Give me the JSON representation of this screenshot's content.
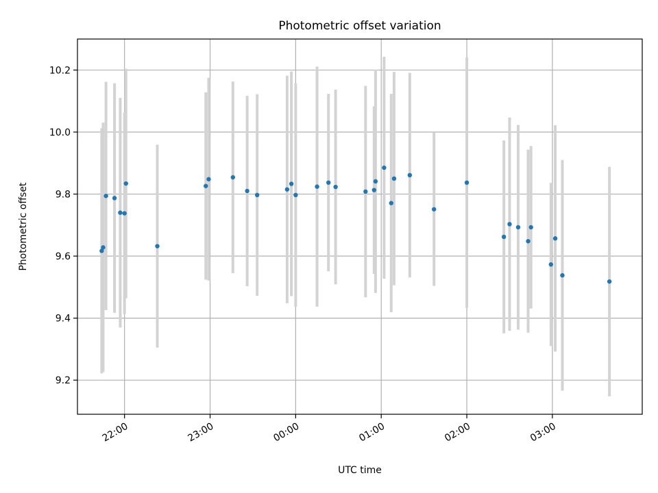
{
  "chart_data": {
    "type": "scatter",
    "title": "Photometric offset variation",
    "xlabel": "UTC time",
    "ylabel": "Photometric offset",
    "x_axis_type": "time",
    "xlim": [
      "21:27",
      "04:03"
    ],
    "ylim": [
      9.09,
      10.3
    ],
    "grid": true,
    "x_ticks": [
      "22:00",
      "23:00",
      "00:00",
      "01:00",
      "02:00",
      "03:00"
    ],
    "y_ticks": [
      "9.2",
      "9.4",
      "9.6",
      "9.8",
      "10.0",
      "10.2"
    ],
    "y_tick_values": [
      9.2,
      9.4,
      9.6,
      9.8,
      10.0,
      10.2
    ],
    "point_color": "#1f77b4",
    "errorbar_color": "#d3d3d3",
    "points": [
      {
        "t": "21:44",
        "y": 9.617,
        "err": 0.395
      },
      {
        "t": "21:45",
        "y": 9.628,
        "err": 0.402
      },
      {
        "t": "21:47",
        "y": 9.794,
        "err": 0.368
      },
      {
        "t": "21:53",
        "y": 9.787,
        "err": 0.37
      },
      {
        "t": "21:57",
        "y": 9.74,
        "err": 0.37
      },
      {
        "t": "22:00",
        "y": 9.738,
        "err": 0.325
      },
      {
        "t": "22:01",
        "y": 9.834,
        "err": 0.37
      },
      {
        "t": "22:23",
        "y": 9.632,
        "err": 0.327
      },
      {
        "t": "22:57",
        "y": 9.826,
        "err": 0.302
      },
      {
        "t": "22:59",
        "y": 9.848,
        "err": 0.327
      },
      {
        "t": "23:16",
        "y": 9.854,
        "err": 0.309
      },
      {
        "t": "23:26",
        "y": 9.81,
        "err": 0.307
      },
      {
        "t": "23:33",
        "y": 9.797,
        "err": 0.325
      },
      {
        "t": "23:54",
        "y": 9.815,
        "err": 0.367
      },
      {
        "t": "23:57",
        "y": 9.833,
        "err": 0.362
      },
      {
        "t": "00:00",
        "y": 9.797,
        "err": 0.36
      },
      {
        "t": "00:15",
        "y": 9.824,
        "err": 0.387
      },
      {
        "t": "00:23",
        "y": 9.837,
        "err": 0.286
      },
      {
        "t": "00:28",
        "y": 9.823,
        "err": 0.314
      },
      {
        "t": "00:49",
        "y": 9.808,
        "err": 0.341
      },
      {
        "t": "00:55",
        "y": 9.813,
        "err": 0.27
      },
      {
        "t": "00:56",
        "y": 9.841,
        "err": 0.36
      },
      {
        "t": "01:02",
        "y": 9.885,
        "err": 0.358
      },
      {
        "t": "01:07",
        "y": 9.771,
        "err": 0.352
      },
      {
        "t": "01:09",
        "y": 9.85,
        "err": 0.344
      },
      {
        "t": "01:20",
        "y": 9.861,
        "err": 0.33
      },
      {
        "t": "01:37",
        "y": 9.751,
        "err": 0.247
      },
      {
        "t": "02:00",
        "y": 9.837,
        "err": 0.404
      },
      {
        "t": "02:26",
        "y": 9.662,
        "err": 0.311
      },
      {
        "t": "02:30",
        "y": 9.703,
        "err": 0.344
      },
      {
        "t": "02:36",
        "y": 9.693,
        "err": 0.33
      },
      {
        "t": "02:43",
        "y": 9.648,
        "err": 0.295
      },
      {
        "t": "02:45",
        "y": 9.693,
        "err": 0.262
      },
      {
        "t": "02:59",
        "y": 9.573,
        "err": 0.263
      },
      {
        "t": "03:02",
        "y": 9.657,
        "err": 0.365
      },
      {
        "t": "03:07",
        "y": 9.538,
        "err": 0.372
      },
      {
        "t": "03:40",
        "y": 9.518,
        "err": 0.37
      }
    ]
  }
}
